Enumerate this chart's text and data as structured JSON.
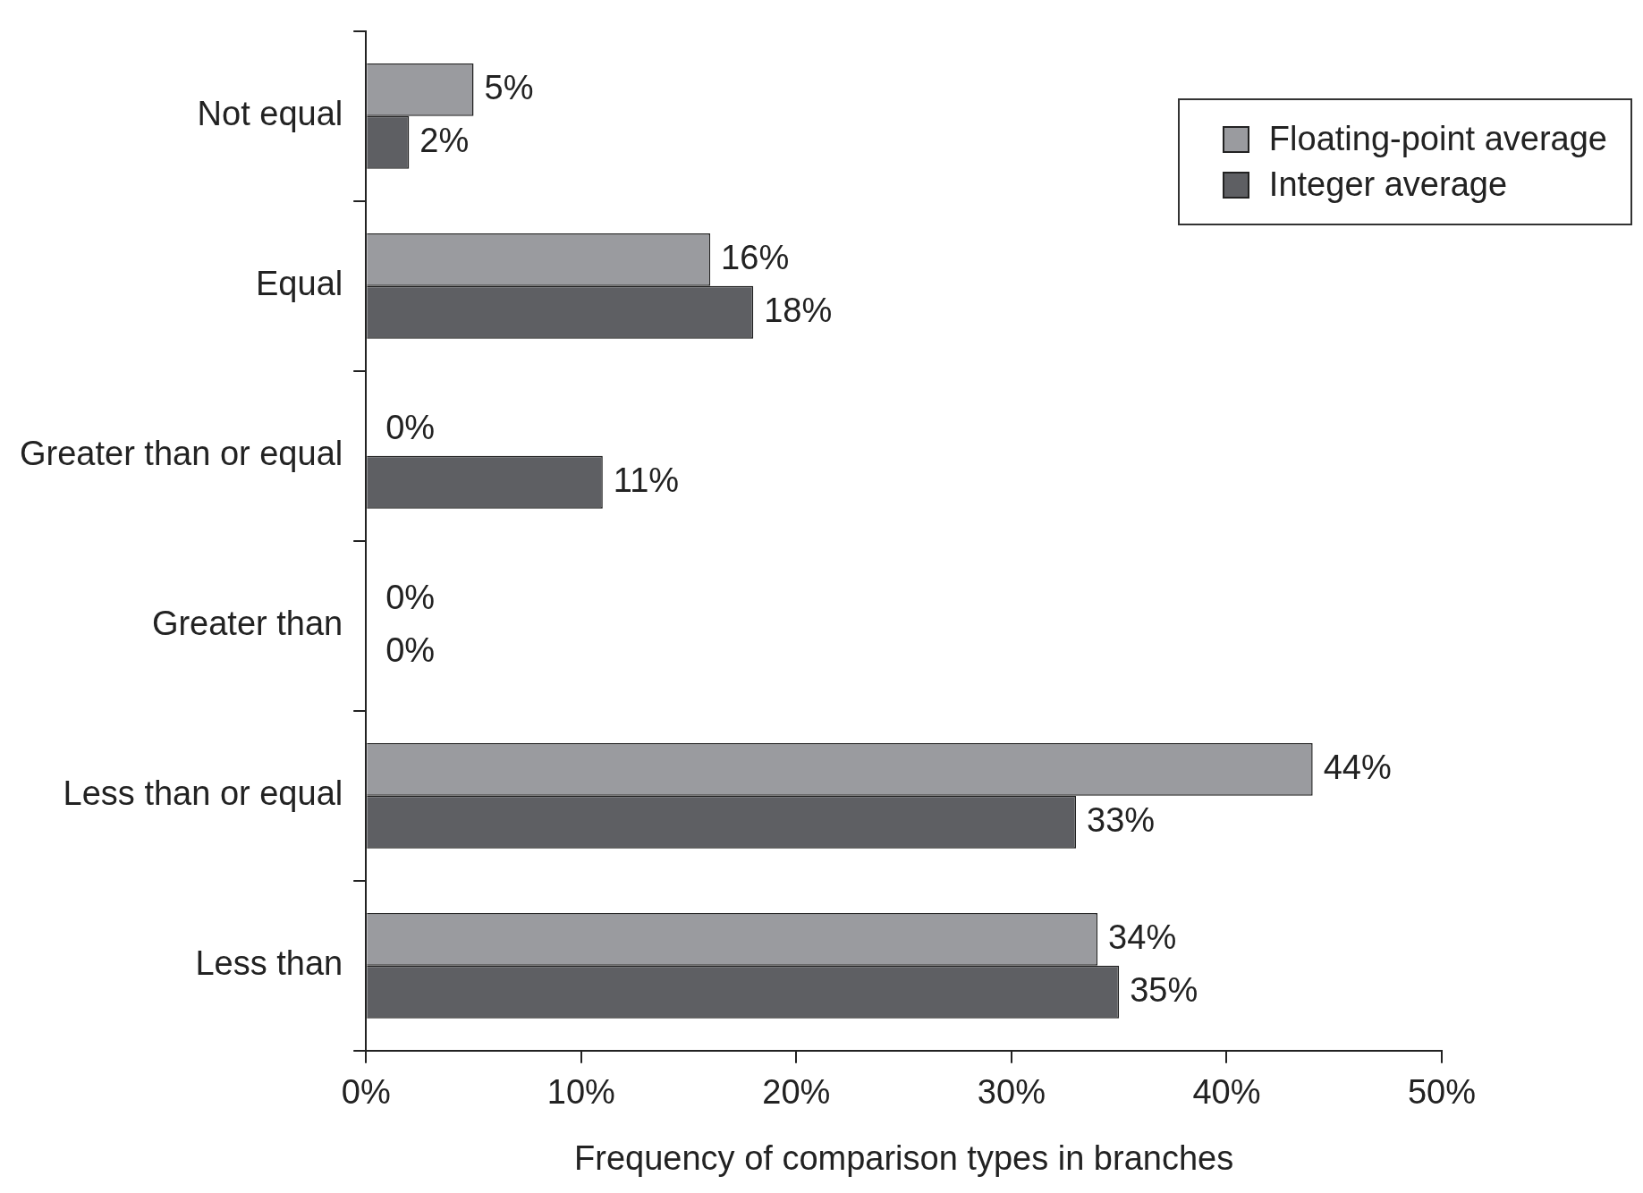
{
  "chart_data": {
    "type": "bar",
    "orientation": "horizontal",
    "xlabel": "Frequency of comparison types in branches",
    "categories": [
      "Not equal",
      "Equal",
      "Greater than or equal",
      "Greater than",
      "Less than or equal",
      "Less than"
    ],
    "series": [
      {
        "name": "Floating-point average",
        "color": "#9a9b9f",
        "values": [
          5,
          16,
          0,
          0,
          44,
          34
        ],
        "value_labels": [
          "5%",
          "16%",
          "0%",
          "0%",
          "44%",
          "34%"
        ]
      },
      {
        "name": "Integer average",
        "color": "#5e5f63",
        "values": [
          2,
          18,
          11,
          0,
          33,
          35
        ],
        "value_labels": [
          "2%",
          "18%",
          "11%",
          "0%",
          "33%",
          "35%"
        ]
      }
    ],
    "xlim": [
      0,
      50
    ],
    "xticks": [
      {
        "value": 0,
        "label": "0%"
      },
      {
        "value": 10,
        "label": "10%"
      },
      {
        "value": 20,
        "label": "20%"
      },
      {
        "value": 30,
        "label": "30%"
      },
      {
        "value": 40,
        "label": "40%"
      },
      {
        "value": 50,
        "label": "50%"
      }
    ],
    "grid": false,
    "legend": "top right"
  }
}
